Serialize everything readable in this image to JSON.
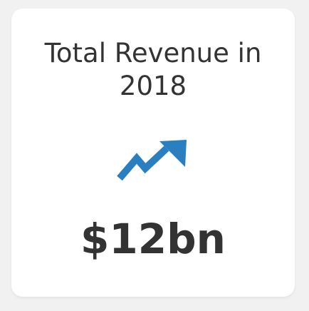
{
  "card": {
    "title": "Total Revenue in 2018",
    "value": "$12bn",
    "icon": "trending-up-icon",
    "accent_color": "#2a7fc1"
  }
}
